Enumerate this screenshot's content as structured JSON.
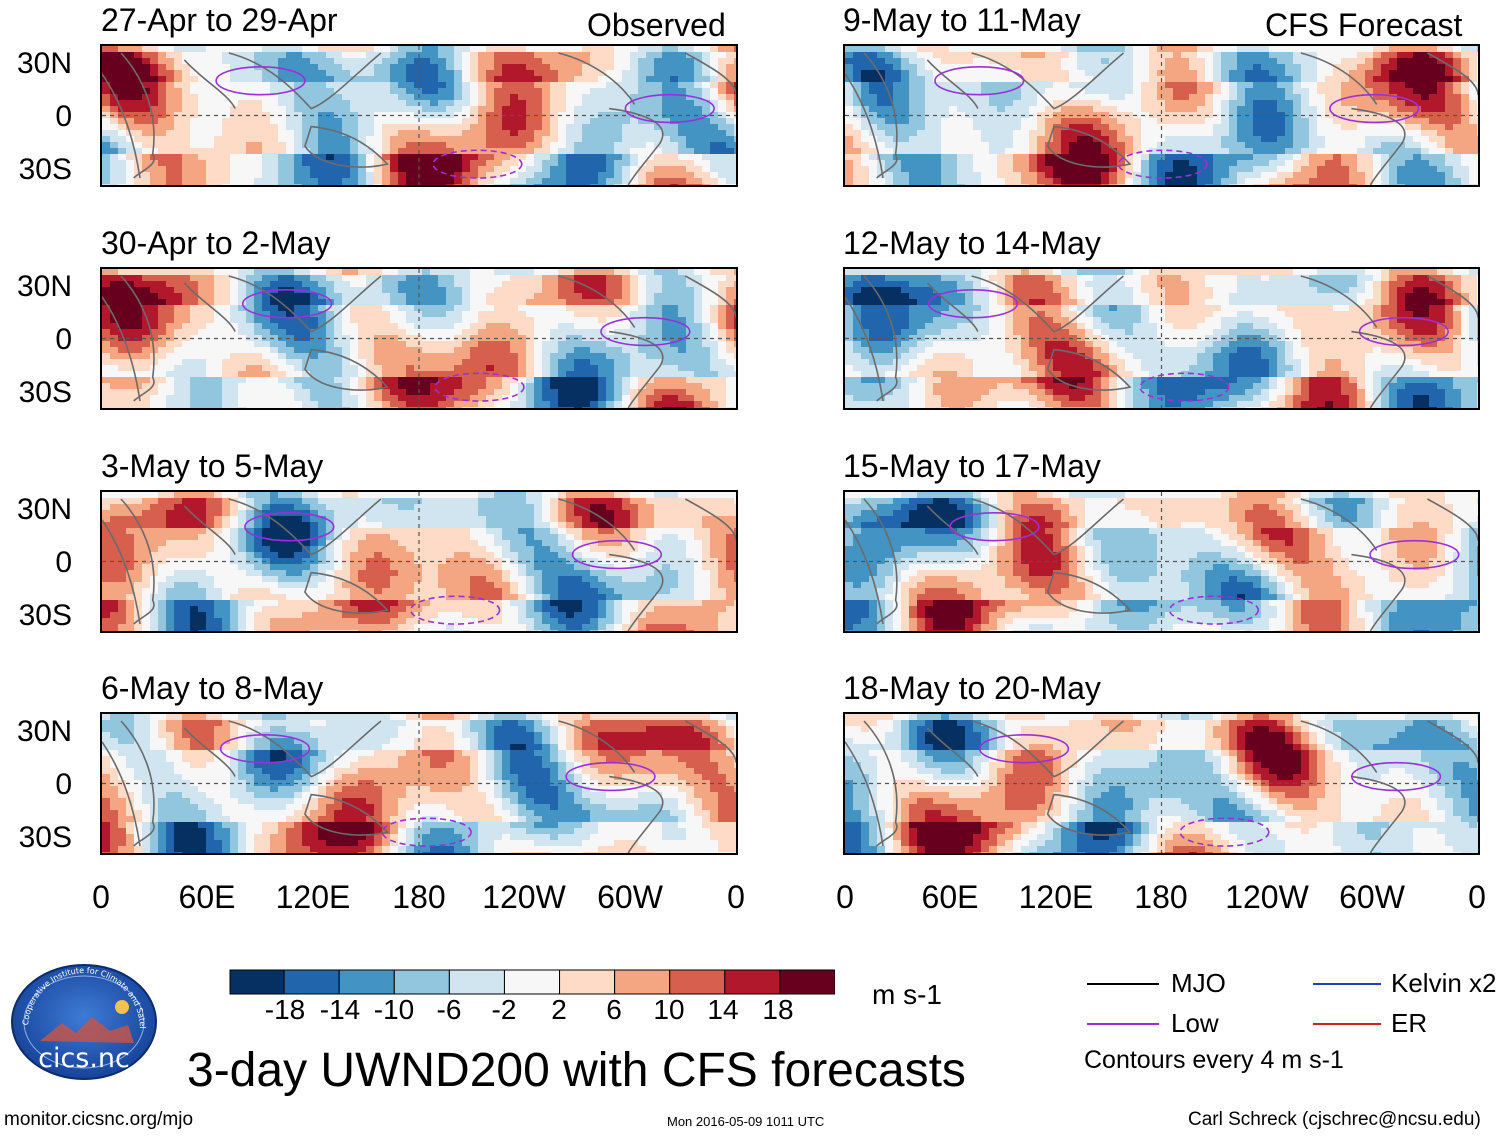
{
  "column_labels": {
    "left": "Observed",
    "right": "CFS Forecast"
  },
  "panels": [
    {
      "title": "27-Apr to 29-Apr",
      "column": "left",
      "row": 0,
      "source": "observed"
    },
    {
      "title": "30-Apr to 2-May",
      "column": "left",
      "row": 1,
      "source": "observed"
    },
    {
      "title": "3-May to 5-May",
      "column": "left",
      "row": 2,
      "source": "observed"
    },
    {
      "title": "6-May to 8-May",
      "column": "left",
      "row": 3,
      "source": "observed"
    },
    {
      "title": "9-May to 11-May",
      "column": "right",
      "row": 0,
      "source": "forecast"
    },
    {
      "title": "12-May to 14-May",
      "column": "right",
      "row": 1,
      "source": "forecast"
    },
    {
      "title": "15-May to 17-May",
      "column": "right",
      "row": 2,
      "source": "forecast"
    },
    {
      "title": "18-May to 20-May",
      "column": "right",
      "row": 3,
      "source": "forecast"
    }
  ],
  "axes": {
    "y_ticks": [
      "30N",
      "0",
      "30S"
    ],
    "y_values": [
      30,
      0,
      -30
    ],
    "ylim": [
      -40,
      40
    ],
    "x_ticks": [
      "0",
      "60E",
      "120E",
      "180",
      "120W",
      "60W",
      "0"
    ],
    "x_values": [
      0,
      60,
      120,
      180,
      240,
      300,
      360
    ],
    "xlim": [
      0,
      360
    ]
  },
  "chart_data": {
    "type": "heatmap",
    "title": "3-day UWND200 with CFS forecasts",
    "variable": "UWND200",
    "units": "m s-1",
    "colorbar": {
      "ticks": [
        "-18",
        "-14",
        "-10",
        "-6",
        "-2",
        "2",
        "6",
        "10",
        "14",
        "18"
      ],
      "tick_values": [
        -18,
        -14,
        -10,
        -6,
        -2,
        2,
        6,
        10,
        14,
        18
      ],
      "colors": [
        "#053061",
        "#2166ac",
        "#4393c3",
        "#92c5de",
        "#d1e5f0",
        "#f7f7f7",
        "#fddbc7",
        "#f4a582",
        "#d6604d",
        "#b2182b",
        "#67001f"
      ]
    },
    "contour_interval": "Contours every 4 m s-1",
    "legend": [
      {
        "label": "MJO",
        "color": "#000000"
      },
      {
        "label": "Kelvin x2",
        "color": "#1f3fbf"
      },
      {
        "label": "Low",
        "color": "#9b30d9"
      },
      {
        "label": "ER",
        "color": "#cc2222"
      }
    ]
  },
  "footer": {
    "left": "monitor.cicsnc.org/mjo",
    "center": "Mon 2016-05-09 1011 UTC",
    "right": "Carl Schreck (cjschrec@ncsu.edu)"
  },
  "logo": {
    "text": "cics.nc",
    "ring_text": "Cooperative Institute for Climate and Satellites"
  }
}
